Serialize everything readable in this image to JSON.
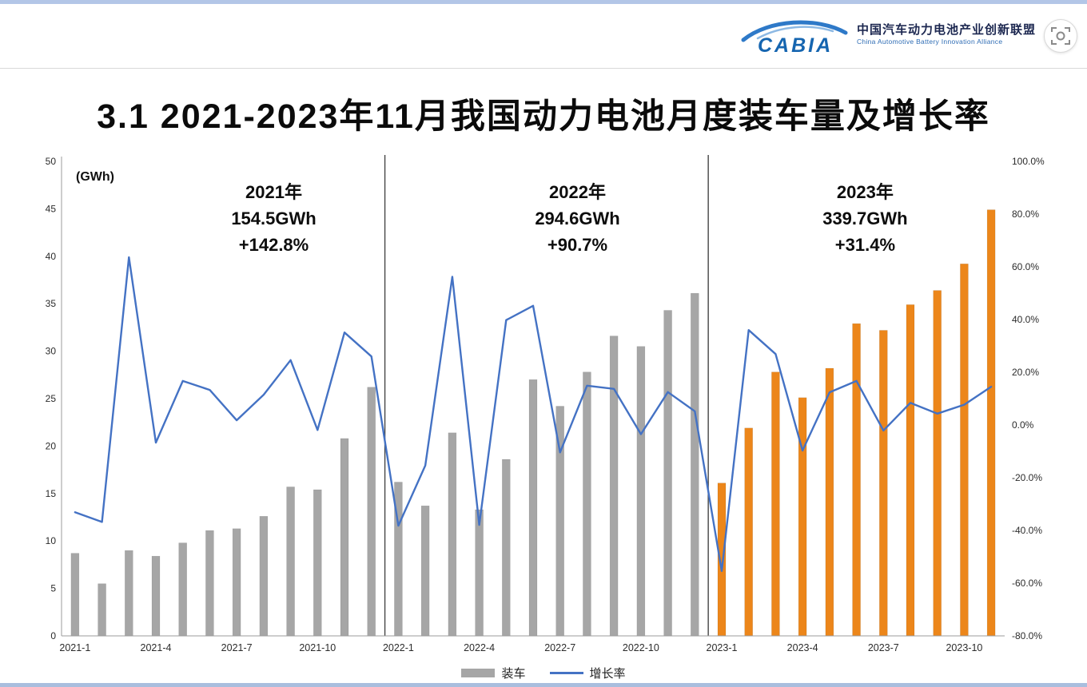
{
  "header": {
    "logo_text": "CABIA",
    "org_name_cn": "中国汽车动力电池产业创新联盟",
    "org_name_en": "China Automotive Battery Innovation Alliance",
    "icons": {
      "screenshot": "viewfinder-circle-icon"
    }
  },
  "title": "3.1 2021-2023年11月我国动力电池月度装车量及增长率",
  "chart_data": {
    "type": "bar",
    "subtype": "bar+line combo, dual axis",
    "title": "2021-2023年11月我国动力电池月度装车量及增长率",
    "unit_label": "(GWh)",
    "grid": "off",
    "legend_position": "bottom-center",
    "legend": {
      "bar_label": "装车",
      "line_label": "增长率"
    },
    "categories": [
      "2021-1",
      "2021-2",
      "2021-3",
      "2021-4",
      "2021-5",
      "2021-6",
      "2021-7",
      "2021-8",
      "2021-9",
      "2021-10",
      "2021-11",
      "2021-12",
      "2022-1",
      "2022-2",
      "2022-3",
      "2022-4",
      "2022-5",
      "2022-6",
      "2022-7",
      "2022-8",
      "2022-9",
      "2022-10",
      "2022-11",
      "2022-12",
      "2023-1",
      "2023-2",
      "2023-3",
      "2023-4",
      "2023-5",
      "2023-6",
      "2023-7",
      "2023-8",
      "2023-9",
      "2023-10",
      "2023-11"
    ],
    "x_tick_labels": [
      "2021-1",
      "2021-4",
      "2021-7",
      "2021-10",
      "2022-1",
      "2022-4",
      "2022-7",
      "2022-10",
      "2023-1",
      "2023-4",
      "2023-7",
      "2023-10"
    ],
    "series": [
      {
        "name": "装车",
        "type": "bar",
        "unit": "GWh",
        "axis": "left",
        "values": [
          8.7,
          5.5,
          9.0,
          8.4,
          9.8,
          11.1,
          11.3,
          12.6,
          15.7,
          15.4,
          20.8,
          26.2,
          16.2,
          13.7,
          21.4,
          13.3,
          18.6,
          27.0,
          24.2,
          27.8,
          31.6,
          30.5,
          34.3,
          36.1,
          16.1,
          21.9,
          27.8,
          25.1,
          28.2,
          32.9,
          32.2,
          34.9,
          36.4,
          39.2,
          44.9
        ]
      },
      {
        "name": "增长率",
        "type": "line",
        "unit": "%",
        "axis": "right",
        "values": [
          -33.1,
          -36.8,
          63.6,
          -6.7,
          16.7,
          13.3,
          1.8,
          11.5,
          24.6,
          -1.9,
          35.1,
          26.0,
          -38.2,
          -15.4,
          56.2,
          -37.9,
          39.8,
          45.2,
          -10.4,
          14.9,
          13.7,
          -3.5,
          12.5,
          5.2,
          -55.4,
          36.0,
          26.9,
          -9.7,
          12.4,
          16.7,
          -2.1,
          8.4,
          4.3,
          7.7,
          14.5
        ]
      }
    ],
    "left_axis": {
      "min": 0,
      "max": 50,
      "step": 5
    },
    "right_axis": {
      "min": -80,
      "max": 100,
      "step": 20,
      "suffix": "%"
    },
    "year_separators_after_index": [
      12,
      24
    ],
    "annotations": [
      {
        "x_frac": 0.225,
        "lines": [
          "2021年",
          "154.5GWh",
          "+142.8%"
        ]
      },
      {
        "x_frac": 0.547,
        "lines": [
          "2022年",
          "294.6GWh",
          "+90.7%"
        ]
      },
      {
        "x_frac": 0.852,
        "lines": [
          "2023年",
          "339.7GWh",
          "+31.4%"
        ]
      }
    ],
    "colors": {
      "bar": "#a6a6a6",
      "bar_2023": "#ec861a",
      "line": "#4472c4",
      "separator": "#454545",
      "axis": "#9b9b9b",
      "tick_text": "#2b2b2b",
      "annotation_text": "#0d0d0d"
    }
  }
}
